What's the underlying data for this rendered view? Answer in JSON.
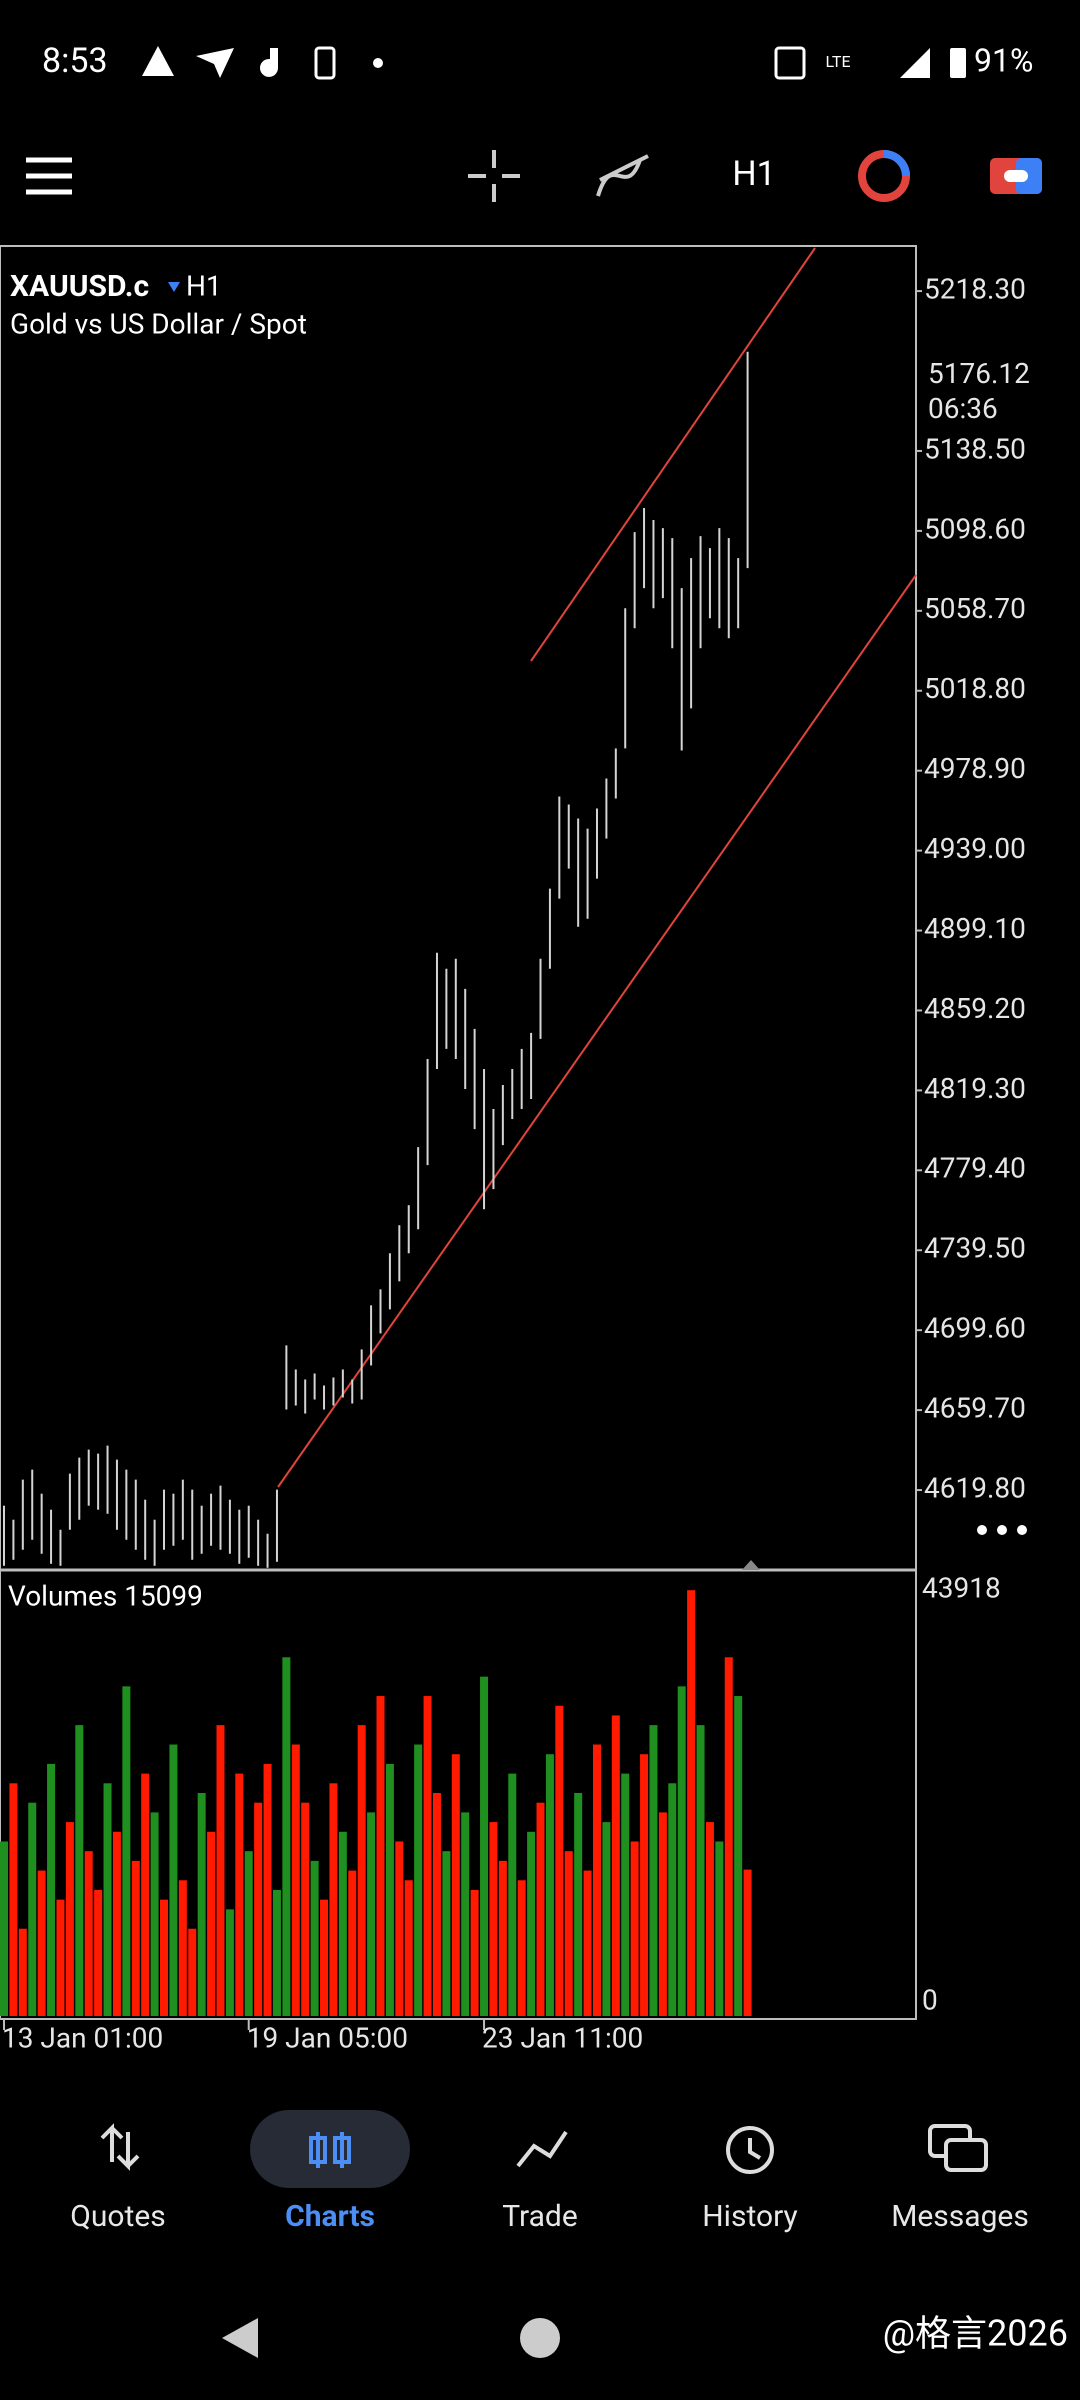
{
  "status_bar": {
    "time": "8:53",
    "battery": "91%"
  },
  "toolbar": {
    "timeframe": "H1"
  },
  "chart_data": {
    "type": "ohlc",
    "symbol": "XAUUSD.c",
    "timeframe": "H1",
    "subtitle": "Gold vs US Dollar / Spot",
    "color": "#d4d4d4",
    "categories": [
      "13 Jan 01:00",
      null,
      null,
      null,
      null,
      null,
      null,
      null,
      null,
      null,
      null,
      null,
      null,
      null,
      null,
      null,
      null,
      null,
      null,
      null,
      null,
      null,
      null,
      null,
      null,
      null,
      "19 Jan 05:00",
      null,
      null,
      null,
      null,
      null,
      null,
      null,
      null,
      null,
      null,
      null,
      null,
      null,
      null,
      null,
      null,
      null,
      null,
      null,
      null,
      null,
      null,
      null,
      null,
      "23 Jan 11:00",
      null,
      null,
      null,
      null,
      null,
      null,
      null,
      null,
      null,
      null,
      null,
      null,
      null,
      null,
      null,
      null,
      null,
      null,
      null,
      null,
      null,
      null,
      null,
      null,
      null,
      null,
      null,
      null
    ],
    "highs": [
      4612,
      4605,
      4625,
      4630,
      4618,
      4610,
      4600,
      4628,
      4636,
      4640,
      4638,
      4642,
      4635,
      4630,
      4625,
      4615,
      4605,
      4620,
      4618,
      4625,
      4620,
      4612,
      4618,
      4622,
      4615,
      4610,
      4612,
      4605,
      4598,
      4620,
      4692,
      4680,
      4675,
      4678,
      4672,
      4676,
      4680,
      4675,
      4690,
      4712,
      4720,
      4738,
      4752,
      4762,
      4791,
      4835,
      4888,
      4880,
      4885,
      4870,
      4850,
      4830,
      4810,
      4822,
      4830,
      4840,
      4848,
      4885,
      4920,
      4966,
      4962,
      4955,
      4950,
      4960,
      4975,
      4990,
      5060,
      5098,
      5110,
      5104,
      5100,
      5095,
      5070,
      5085,
      5096,
      5090,
      5100,
      5095,
      5085,
      5188
    ],
    "lows": [
      4582,
      4585,
      4590,
      4595,
      4588,
      4583,
      4582,
      4600,
      4605,
      4612,
      4610,
      4608,
      4600,
      4595,
      4590,
      4585,
      4582,
      4590,
      4592,
      4595,
      4585,
      4588,
      4592,
      4590,
      4588,
      4583,
      4586,
      4582,
      4581,
      4584,
      4660,
      4662,
      4658,
      4665,
      4660,
      4662,
      4666,
      4663,
      4665,
      4682,
      4698,
      4710,
      4724,
      4738,
      4750,
      4782,
      4830,
      4840,
      4835,
      4820,
      4800,
      4760,
      4770,
      4792,
      4805,
      4810,
      4815,
      4845,
      4880,
      4915,
      4930,
      4901,
      4905,
      4925,
      4945,
      4965,
      4990,
      5050,
      5070,
      5060,
      5065,
      5040,
      4989,
      5010,
      5040,
      5055,
      5050,
      5045,
      5050,
      5080
    ],
    "ylim": [
      4579.9,
      5240.8
    ],
    "yticks": [
      {
        "value": 5218.3,
        "label": "5218.30"
      },
      {
        "value": 5138.5,
        "label": "5138.50"
      },
      {
        "value": 5098.6,
        "label": "5098.60"
      },
      {
        "value": 5058.7,
        "label": "5058.70"
      },
      {
        "value": 5018.8,
        "label": "5018.80"
      },
      {
        "value": 4978.9,
        "label": "4978.90"
      },
      {
        "value": 4939,
        "label": "4939.00"
      },
      {
        "value": 4899.1,
        "label": "4899.10"
      },
      {
        "value": 4859.2,
        "label": "4859.20"
      },
      {
        "value": 4819.3,
        "label": "4819.30"
      },
      {
        "value": 4779.4,
        "label": "4779.40"
      },
      {
        "value": 4739.5,
        "label": "4739.50"
      },
      {
        "value": 4699.6,
        "label": "4699.60"
      },
      {
        "value": 4659.7,
        "label": "4659.70"
      },
      {
        "value": 4619.8,
        "label": "4619.80"
      }
    ],
    "last_price": 5176.12,
    "countdown": "06:36",
    "volume": {
      "title": "Volumes 15099",
      "values": [
        18000,
        24000,
        9000,
        22000,
        15000,
        26000,
        12000,
        20000,
        30000,
        17000,
        13000,
        24000,
        19000,
        34000,
        16000,
        25000,
        21000,
        12000,
        28000,
        14000,
        9000,
        23000,
        19000,
        30000,
        11000,
        25000,
        17000,
        22000,
        26000,
        13000,
        37000,
        28000,
        22000,
        16000,
        12000,
        24000,
        19000,
        15000,
        30000,
        21000,
        33000,
        26000,
        18000,
        14000,
        28000,
        33000,
        23000,
        17000,
        27000,
        21000,
        13000,
        35000,
        20000,
        16000,
        25000,
        14000,
        19000,
        22000,
        27000,
        32000,
        17000,
        23000,
        15000,
        28000,
        20000,
        31000,
        25000,
        18000,
        27000,
        30000,
        21000,
        24000,
        34000,
        43918,
        30000,
        20000,
        18000,
        37000,
        33000,
        15099
      ],
      "colors": [
        "#1f8f1f",
        "#ff1a00",
        "#ff1a00",
        "#1f8f1f",
        "#ff1a00",
        "#1f8f1f",
        "#ff1a00",
        "#ff1a00",
        "#1f8f1f",
        "#ff1a00",
        "#ff1a00",
        "#1f8f1f",
        "#ff1a00",
        "#1f8f1f",
        "#ff1a00",
        "#ff1a00",
        "#1f8f1f",
        "#ff1a00",
        "#1f8f1f",
        "#ff1a00",
        "#ff1a00",
        "#1f8f1f",
        "#ff1a00",
        "#ff1a00",
        "#1f8f1f",
        "#ff1a00",
        "#1f8f1f",
        "#ff1a00",
        "#ff1a00",
        "#1f8f1f",
        "#1f8f1f",
        "#ff1a00",
        "#ff1a00",
        "#1f8f1f",
        "#ff1a00",
        "#ff1a00",
        "#1f8f1f",
        "#ff1a00",
        "#ff1a00",
        "#1f8f1f",
        "#ff1a00",
        "#1f8f1f",
        "#ff1a00",
        "#ff1a00",
        "#1f8f1f",
        "#ff1a00",
        "#ff1a00",
        "#1f8f1f",
        "#ff1a00",
        "#1f8f1f",
        "#ff1a00",
        "#1f8f1f",
        "#ff1a00",
        "#ff1a00",
        "#1f8f1f",
        "#ff1a00",
        "#1f8f1f",
        "#ff1a00",
        "#1f8f1f",
        "#ff1a00",
        "#ff1a00",
        "#1f8f1f",
        "#ff1a00",
        "#ff1a00",
        "#1f8f1f",
        "#ff1a00",
        "#1f8f1f",
        "#ff1a00",
        "#ff1a00",
        "#1f8f1f",
        "#ff1a00",
        "#1f8f1f",
        "#1f8f1f",
        "#ff1a00",
        "#1f8f1f",
        "#ff1a00",
        "#1f8f1f",
        "#ff1a00",
        "#1f8f1f",
        "#ff1a00"
      ],
      "ylim": [
        0,
        46000
      ],
      "yticks": [
        43918,
        0
      ]
    }
  },
  "nav": {
    "tabs": [
      "Quotes",
      "Charts",
      "Trade",
      "History",
      "Messages"
    ],
    "active": 1
  },
  "watermark": "@格言2026"
}
